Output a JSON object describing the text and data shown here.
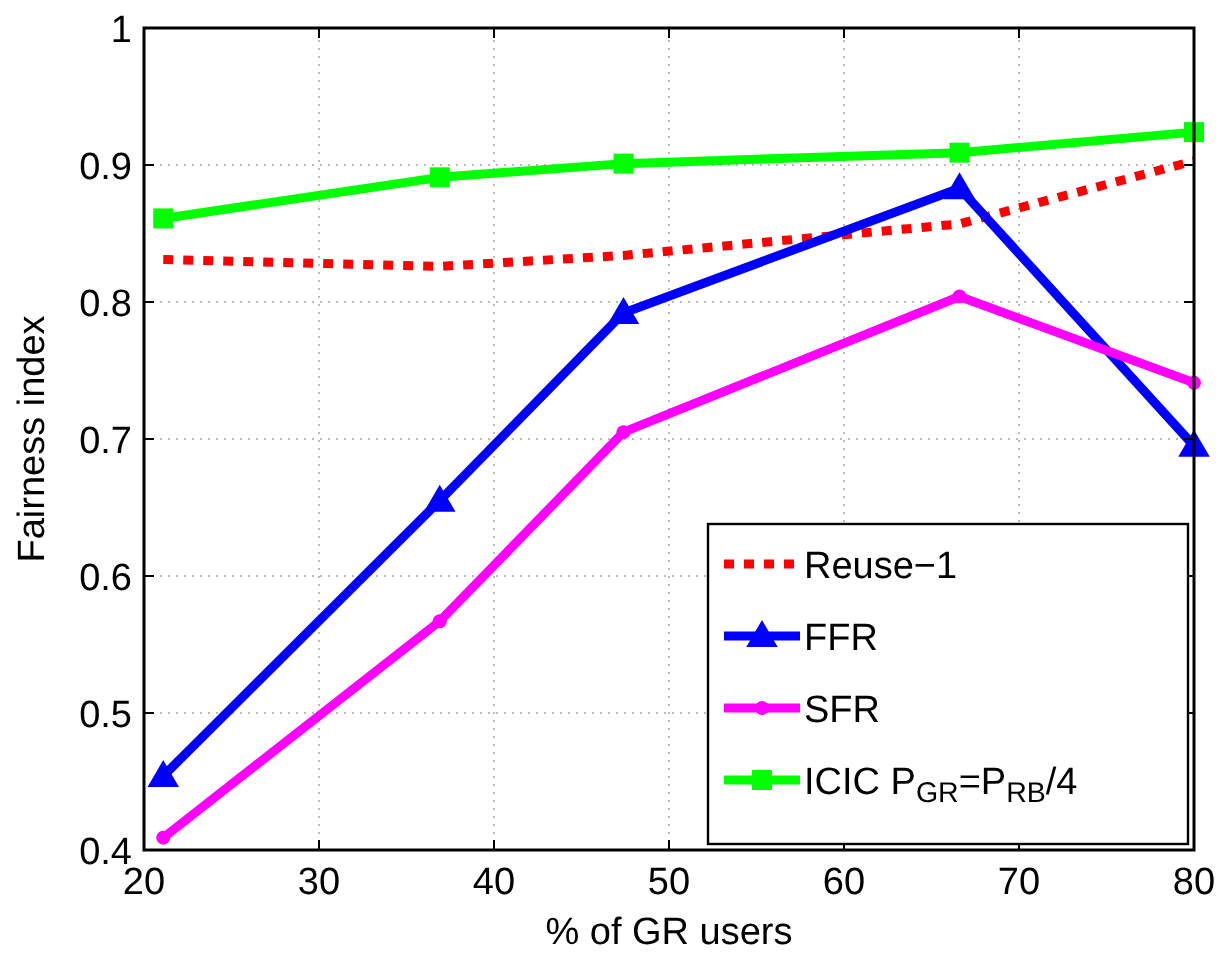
{
  "chart_data": {
    "type": "line",
    "xlabel": "% of GR users",
    "ylabel": "Fairness index",
    "xlim": [
      20,
      80
    ],
    "xticks": [
      20,
      30,
      40,
      50,
      60,
      70,
      80
    ],
    "ylim": [
      0.4,
      1
    ],
    "yticks": [
      0.4,
      0.5,
      0.6,
      0.7,
      0.8,
      0.9,
      1
    ],
    "grid": true,
    "legend": "bottom right",
    "x": [
      21.1,
      36.9,
      47.4,
      66.6,
      80
    ],
    "series": [
      {
        "name": "Reuse−1",
        "color": "#ff0000",
        "line_style": "dotted",
        "marker": "none",
        "values": [
          0.831,
          0.826,
          0.834,
          0.857,
          0.903
        ]
      },
      {
        "name": "FFR",
        "color": "#0000ff",
        "line_style": "solid",
        "marker": "triangle",
        "values": [
          0.454,
          0.655,
          0.792,
          0.883,
          0.695
        ]
      },
      {
        "name": "SFR",
        "color": "#ff00ff",
        "line_style": "solid",
        "marker": "circle",
        "values": [
          0.409,
          0.567,
          0.705,
          0.804,
          0.741
        ]
      },
      {
        "name": "ICIC P$_{GR}$=P$_{RB}$/4",
        "color": "#00ff00",
        "line_style": "solid",
        "marker": "square",
        "values": [
          0.861,
          0.891,
          0.901,
          0.909,
          0.924
        ]
      }
    ]
  }
}
